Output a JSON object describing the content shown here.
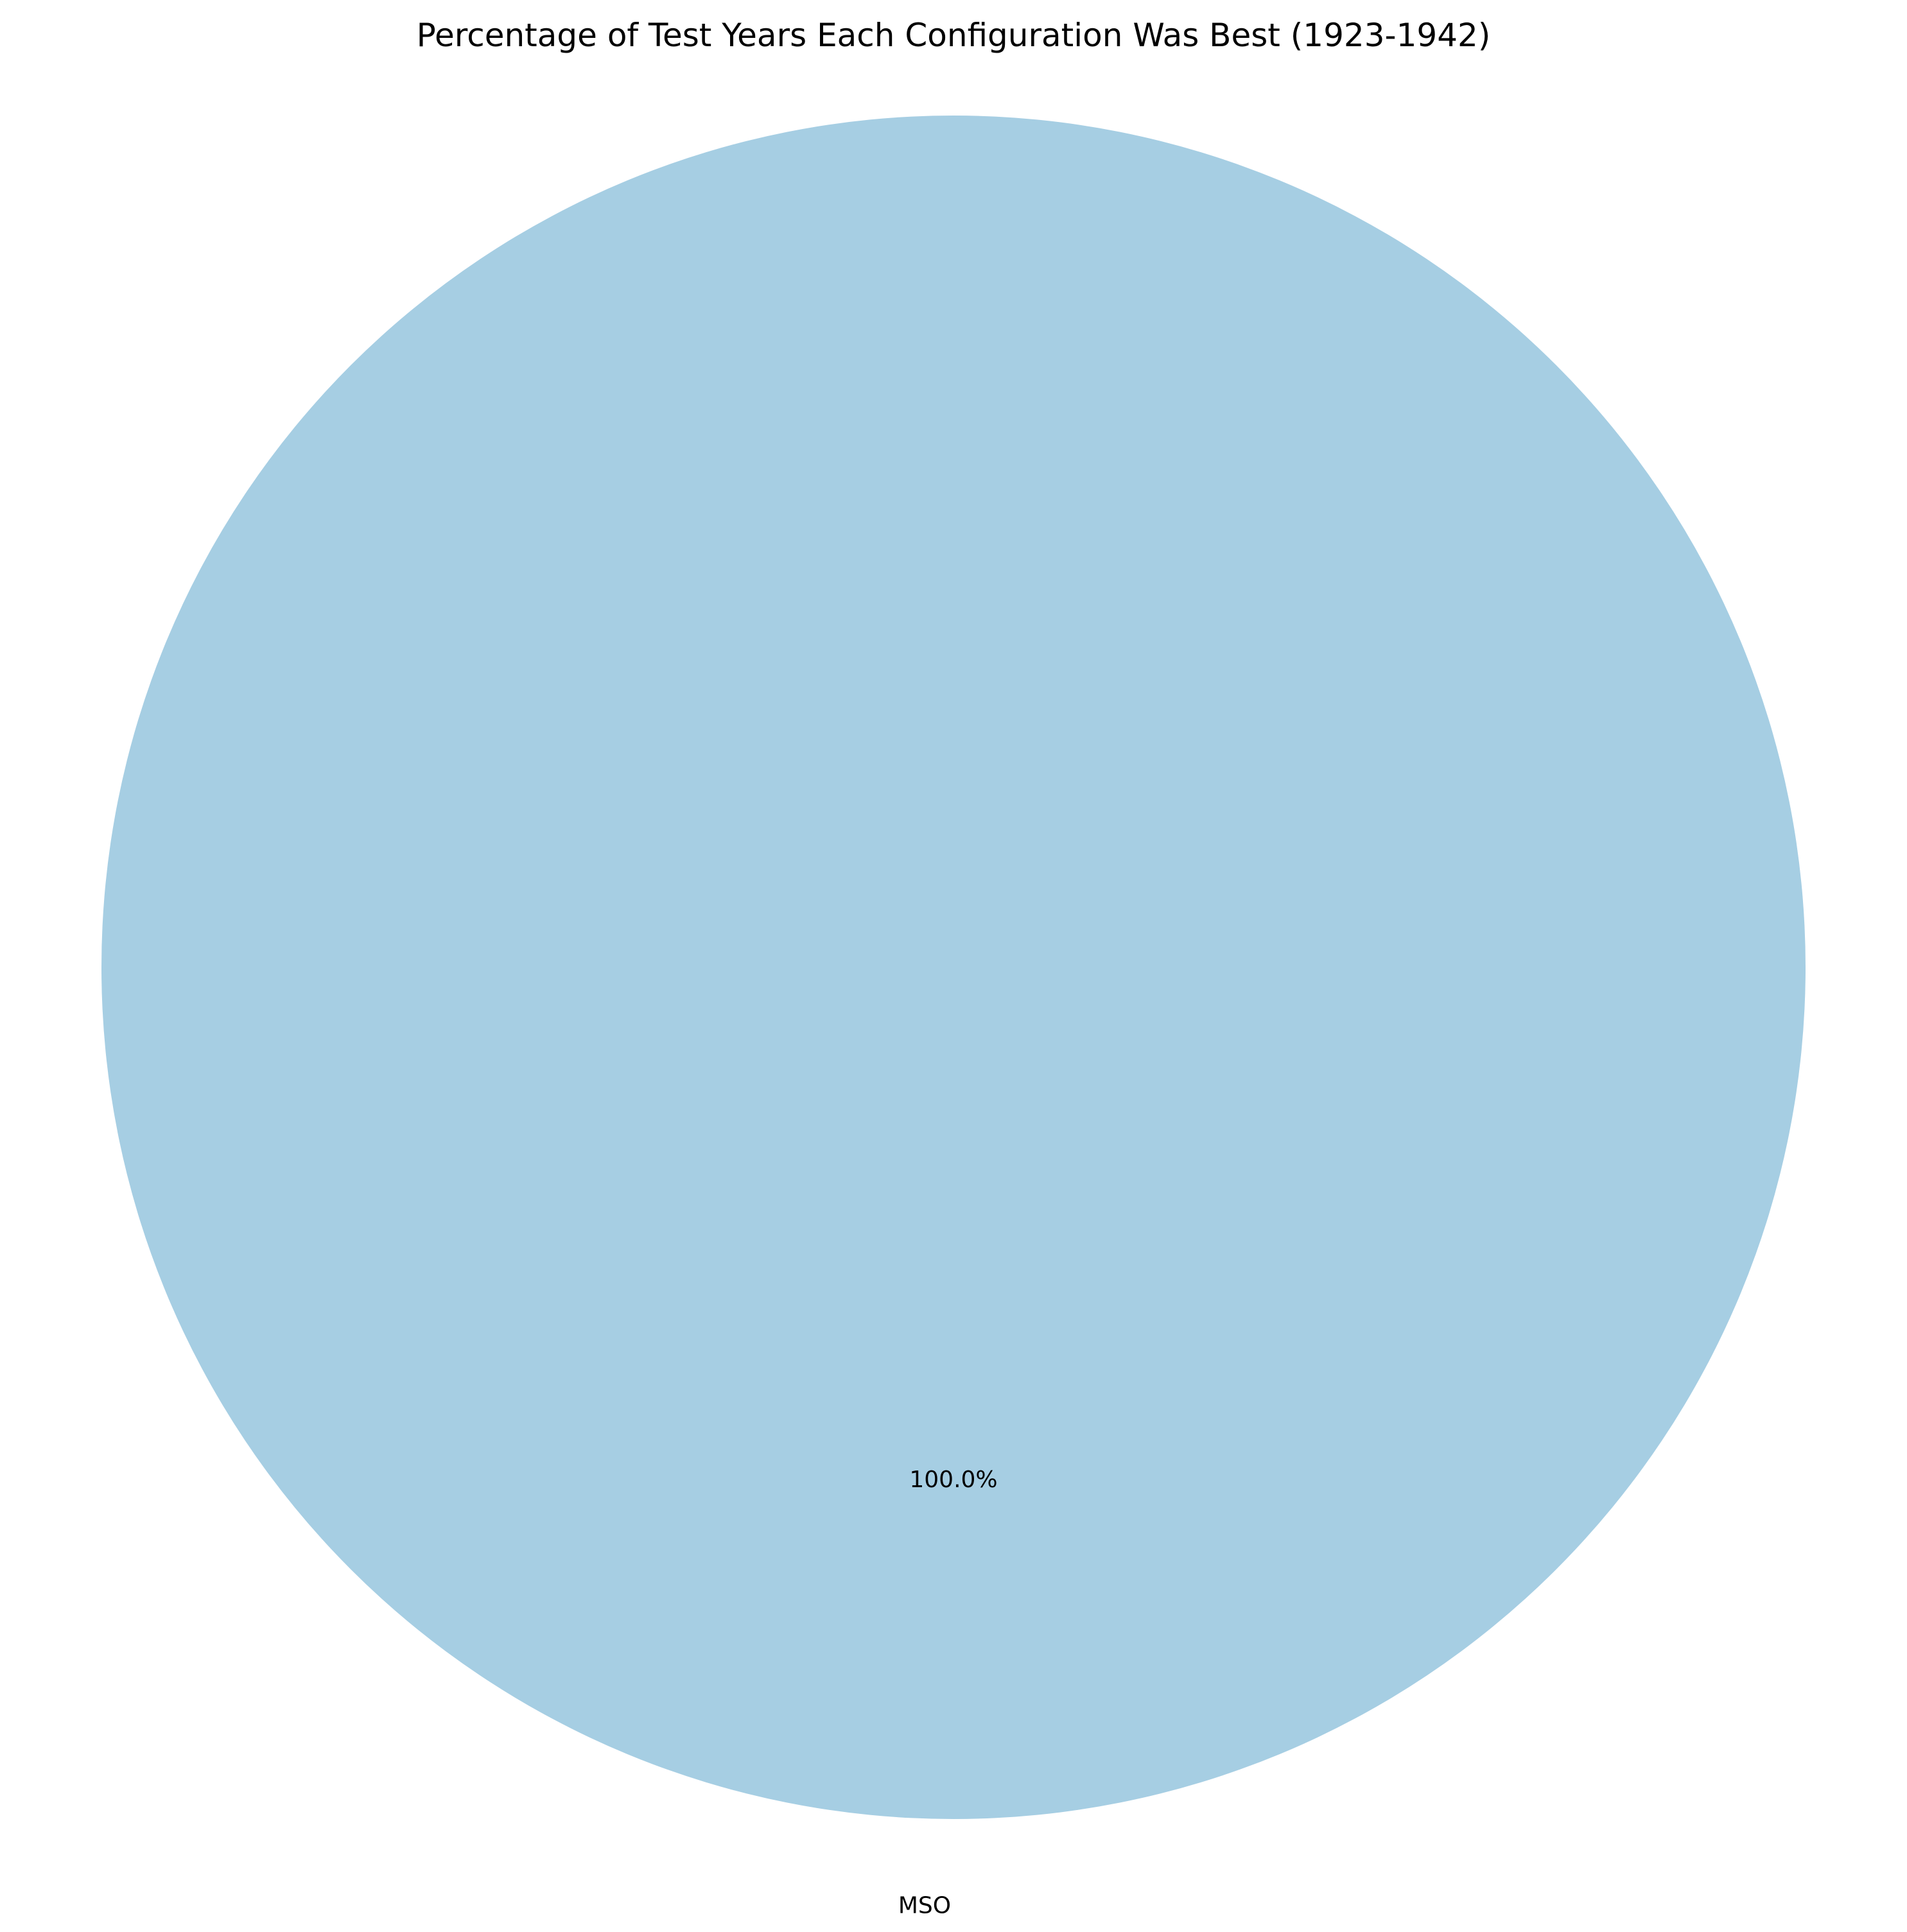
{
  "chart_data": {
    "type": "pie",
    "title": "Percentage of Test Years Each Configuration Was Best (1923-1942)",
    "categories": [
      "MSO"
    ],
    "values": [
      100.0
    ],
    "percent_labels": [
      "100.0%"
    ],
    "colors": [
      "#a6cee3"
    ],
    "start_angle_deg": 90,
    "legend": "none"
  }
}
